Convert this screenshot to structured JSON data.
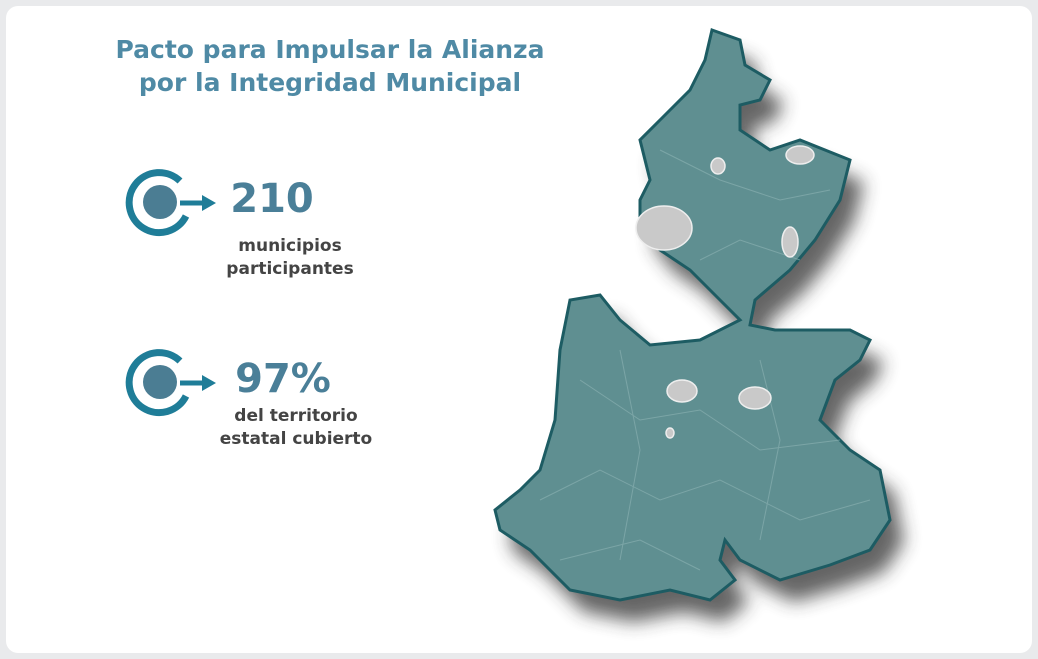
{
  "title": [
    "Pacto para Impulsar la Alianza",
    "por la Integridad Municipal"
  ],
  "stats": [
    {
      "value": "210",
      "label": [
        "municipios",
        "participantes"
      ]
    },
    {
      "value": "97%",
      "label": [
        "del territorio",
        "estatal cubierto"
      ]
    }
  ]
}
